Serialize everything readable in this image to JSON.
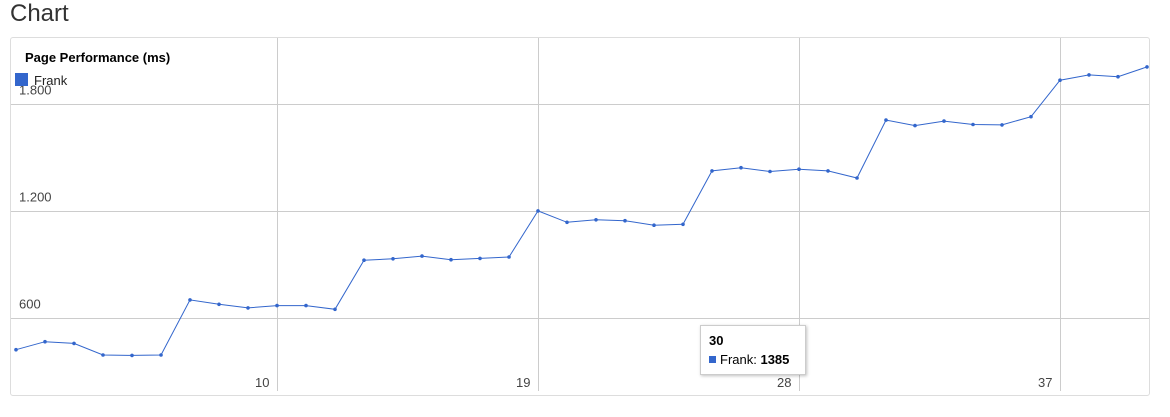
{
  "page": {
    "heading": "Chart"
  },
  "colors": {
    "series": "#3366cc",
    "grid": "#cccccc",
    "axis_text": "#444444"
  },
  "chart_data": {
    "type": "line",
    "title": "Page Performance (ms)",
    "xlabel": "",
    "ylabel": "",
    "legend_position": "top-left",
    "grid": true,
    "xlim": [
      1,
      40
    ],
    "ylim": [
      300,
      2150
    ],
    "y_ticks": [
      {
        "value": 600,
        "label": "600"
      },
      {
        "value": 1200,
        "label": "1.200"
      },
      {
        "value": 1800,
        "label": "1.800"
      }
    ],
    "x_ticks": [
      {
        "value": 10,
        "label": "10"
      },
      {
        "value": 19,
        "label": "19"
      },
      {
        "value": 28,
        "label": "28"
      },
      {
        "value": 37,
        "label": "37"
      }
    ],
    "x": [
      1,
      2,
      3,
      4,
      5,
      6,
      7,
      8,
      9,
      10,
      11,
      12,
      13,
      14,
      15,
      16,
      17,
      18,
      19,
      20,
      21,
      22,
      23,
      24,
      25,
      26,
      27,
      28,
      29,
      30,
      31,
      32,
      33,
      34,
      35,
      36,
      37,
      38,
      39,
      40
    ],
    "series": [
      {
        "name": "Frank",
        "values": [
          420,
          465,
          455,
          390,
          388,
          390,
          700,
          675,
          655,
          668,
          668,
          647,
          923,
          931,
          946,
          926,
          933,
          941,
          1200,
          1136,
          1150,
          1145,
          1120,
          1125,
          1425,
          1443,
          1422,
          1435,
          1425,
          1385,
          1711,
          1680,
          1705,
          1686,
          1684,
          1730,
          1935,
          1965,
          1955,
          2010
        ]
      }
    ],
    "tooltip": {
      "title": "30",
      "series_name": "Frank:",
      "value": "1385"
    }
  }
}
